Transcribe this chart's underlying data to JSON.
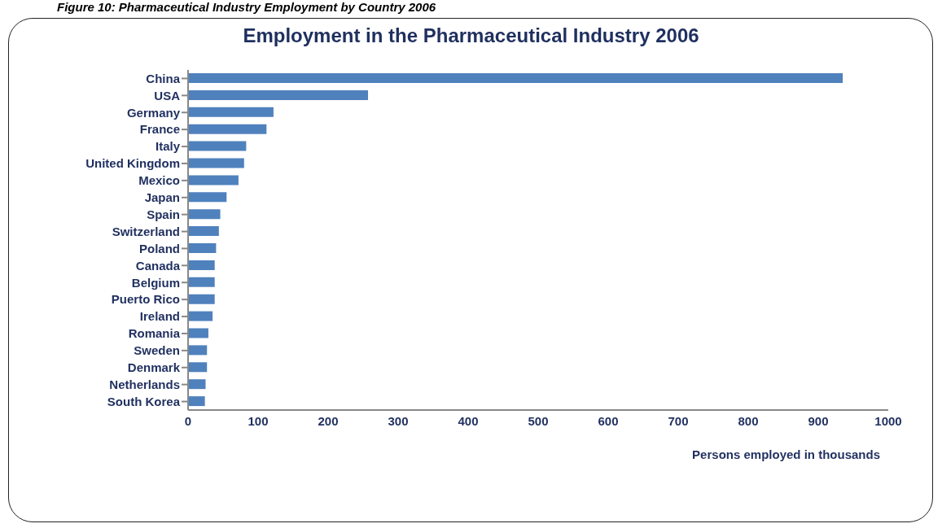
{
  "chart_data": {
    "type": "bar",
    "orientation": "horizontal",
    "title": "Employment in the Pharmaceutical Industry 2006",
    "xlabel": "Persons employed in thousands",
    "annotations": [
      "Figure 10: Pharmaceutical Industry Employment by Country 2006"
    ],
    "categories": [
      "China",
      "USA",
      "Germany",
      "France",
      "Italy",
      "United Kingdom",
      "Mexico",
      "Japan",
      "Spain",
      "Switzerland",
      "Poland",
      "Canada",
      "Belgium",
      "Puerto Rico",
      "Ireland",
      "Romania",
      "Sweden",
      "Denmark",
      "Netherlands",
      "South Korea"
    ],
    "values": [
      935,
      257,
      122,
      112,
      83,
      80,
      72,
      55,
      46,
      44,
      40,
      38,
      38,
      38,
      35,
      29,
      27,
      27,
      25,
      24
    ],
    "color": "#4f81bd",
    "xlim": [
      0,
      1000
    ],
    "xticks": [
      0,
      100,
      200,
      300,
      400,
      500,
      600,
      700,
      800,
      900,
      1000
    ],
    "grid": false,
    "legend": false
  }
}
